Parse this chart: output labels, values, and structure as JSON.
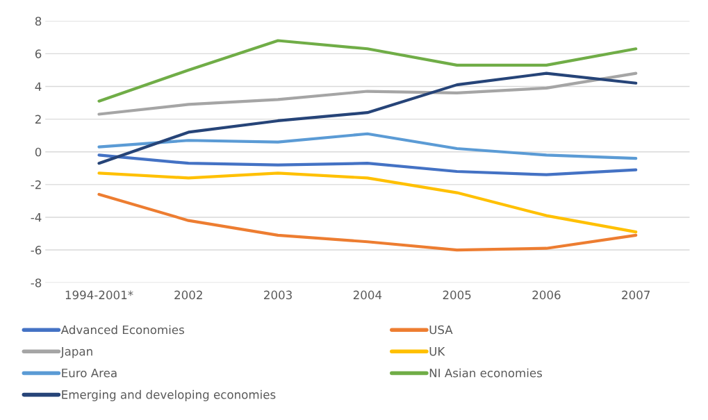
{
  "chart_data": {
    "type": "line",
    "categories": [
      "1994-2001*",
      "2002",
      "2003",
      "2004",
      "2005",
      "2006",
      "2007"
    ],
    "series": [
      {
        "name": "Advanced Economies",
        "color": "#4472c4",
        "values": [
          -0.2,
          -0.7,
          -0.8,
          -0.7,
          -1.2,
          -1.4,
          -1.1
        ]
      },
      {
        "name": "USA",
        "color": "#ed7d31",
        "values": [
          -2.6,
          -4.2,
          -5.1,
          -5.5,
          -6.0,
          -5.9,
          -5.1
        ]
      },
      {
        "name": "Japan",
        "color": "#a5a5a5",
        "values": [
          2.3,
          2.9,
          3.2,
          3.7,
          3.6,
          3.9,
          4.8
        ]
      },
      {
        "name": "UK",
        "color": "#ffc000",
        "values": [
          -1.3,
          -1.6,
          -1.3,
          -1.6,
          -2.5,
          -3.9,
          -4.9
        ]
      },
      {
        "name": "Euro Area",
        "color": "#5b9bd5",
        "values": [
          0.3,
          0.7,
          0.6,
          1.1,
          0.2,
          -0.2,
          -0.4
        ]
      },
      {
        "name": "NI Asian economies",
        "color": "#70ad47",
        "values": [
          3.1,
          5.0,
          6.8,
          6.3,
          5.3,
          5.3,
          6.3
        ]
      },
      {
        "name": "Emerging and developing economies",
        "color": "#264478",
        "values": [
          -0.7,
          1.2,
          1.9,
          2.4,
          4.1,
          4.8,
          4.2
        ]
      }
    ],
    "ylim": [
      -8,
      8
    ],
    "yticks": [
      -8,
      -6,
      -4,
      -2,
      0,
      2,
      4,
      6,
      8
    ],
    "grid": "y",
    "legend": "bottom",
    "marker": "none",
    "line_style": "solid"
  }
}
